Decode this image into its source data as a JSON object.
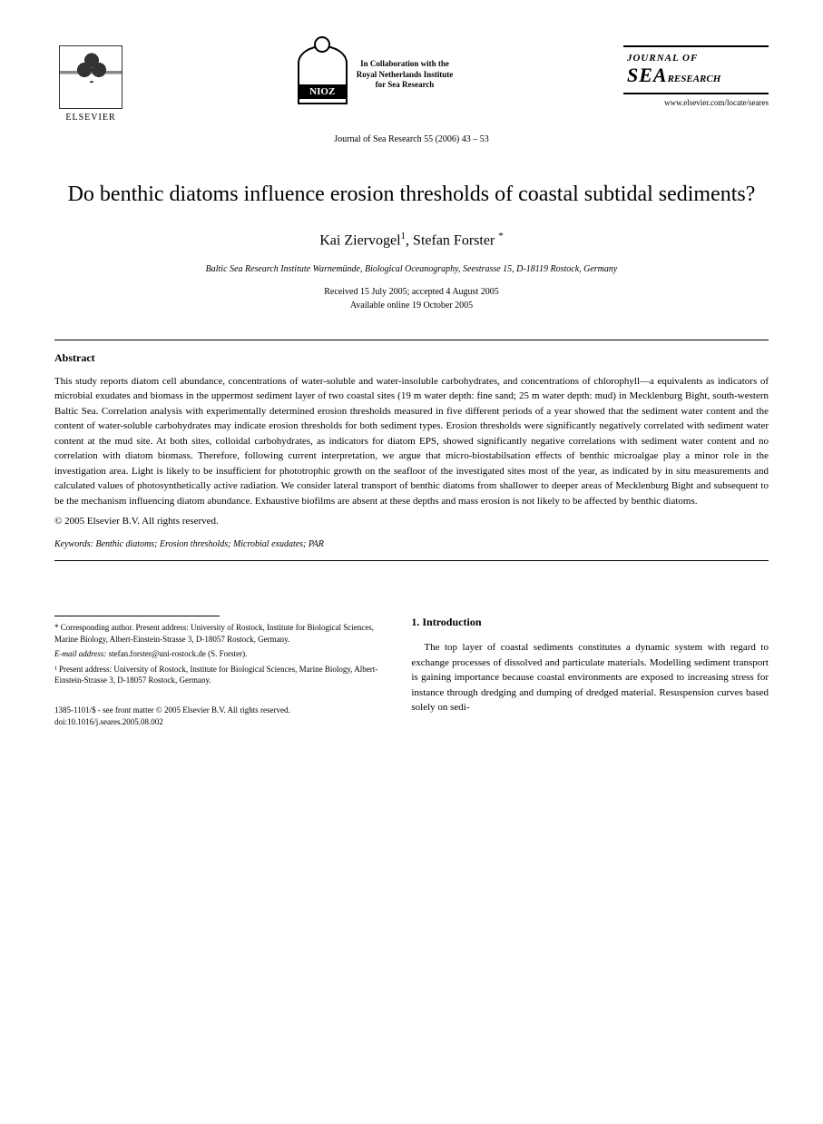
{
  "header": {
    "elsevier_label": "ELSEVIER",
    "nioz_label": "NIOZ",
    "nioz_caption_line1": "In Collaboration with the",
    "nioz_caption_line2": "Royal Netherlands Institute",
    "nioz_caption_line3": "for Sea Research",
    "journal_of": "JOURNAL OF",
    "sea": "SEA",
    "research": "RESEARCH",
    "journal_url": "www.elsevier.com/locate/seares",
    "citation": "Journal of Sea Research 55 (2006) 43 – 53"
  },
  "article": {
    "title": "Do benthic diatoms influence erosion thresholds of coastal subtidal sediments?",
    "author1": "Kai Ziervogel",
    "author1_sup": "1",
    "author2": "Stefan Forster",
    "author2_sup": "*",
    "affiliation": "Baltic Sea Research Institute Warnemünde, Biological Oceanography, Seestrasse 15, D-18119 Rostock, Germany",
    "received": "Received 15 July 2005; accepted 4 August 2005",
    "available": "Available online 19 October 2005"
  },
  "abstract": {
    "heading": "Abstract",
    "body": "This study reports diatom cell abundance, concentrations of water-soluble and water-insoluble carbohydrates, and concentrations of chlorophyll—a equivalents as indicators of microbial exudates and biomass in the uppermost sediment layer of two coastal sites (19 m water depth: fine sand; 25 m water depth: mud) in Mecklenburg Bight, south-western Baltic Sea. Correlation analysis with experimentally determined erosion thresholds measured in five different periods of a year showed that the sediment water content and the content of water-soluble carbohydrates may indicate erosion thresholds for both sediment types. Erosion thresholds were significantly negatively correlated with sediment water content at the mud site. At both sites, colloidal carbohydrates, as indicators for diatom EPS, showed significantly negative correlations with sediment water content and no correlation with diatom biomass. Therefore, following current interpretation, we argue that micro-biostabilsation effects of benthic microalgae play a minor role in the investigation area. Light is likely to be insufficient for phototrophic growth on the seafloor of the investigated sites most of the year, as indicated by in situ measurements and calculated values of photosynthetically active radiation. We consider lateral transport of benthic diatoms from shallower to deeper areas of Mecklenburg Bight and subsequent to be the mechanism influencing diatom abundance. Exhaustive biofilms are absent at these depths and mass erosion is not likely to be affected by benthic diatoms.",
    "copyright": "© 2005 Elsevier B.V. All rights reserved.",
    "keywords_label": "Keywords:",
    "keywords_values": " Benthic diatoms; Erosion thresholds; Microbial exudates; PAR"
  },
  "footnotes": {
    "corresponding": "* Corresponding author. Present address: University of Rostock, Institute for Biological Sciences, Marine Biology, Albert-Einstein-Strasse 3, D-18057 Rostock, Germany.",
    "email_label": "E-mail address:",
    "email_value": " stefan.forster@uni-rostock.de (S. Forster).",
    "fn1": "¹ Present address: University of Rostock, Institute for Biological Sciences, Marine Biology, Albert-Einstein-Strasse 3, D-18057 Rostock, Germany."
  },
  "introduction": {
    "heading": "1. Introduction",
    "body": "The top layer of coastal sediments constitutes a dynamic system with regard to exchange processes of dissolved and particulate materials. Modelling sediment transport is gaining importance because coastal environments are exposed to increasing stress for instance through dredging and dumping of dredged material. Resuspension curves based solely on sedi-"
  },
  "footer": {
    "issn": "1385-1101/$ - see front matter © 2005 Elsevier B.V. All rights reserved.",
    "doi": "doi:10.1016/j.seares.2005.08.002"
  }
}
